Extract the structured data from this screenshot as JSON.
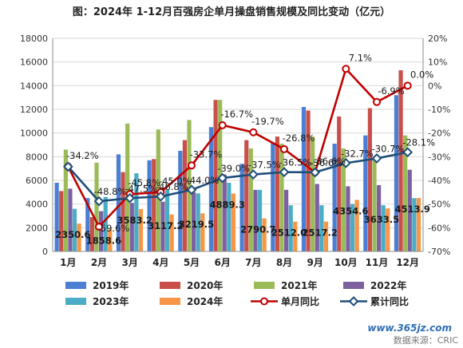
{
  "chart_data": {
    "type": "bar",
    "title": "图：2024年 1-12月百强房企单月操盘销售规模及同比变动（亿元）",
    "categories": [
      "1月",
      "2月",
      "3月",
      "4月",
      "5月",
      "6月",
      "7月",
      "8月",
      "9月",
      "10月",
      "11月",
      "12月"
    ],
    "y_left": {
      "min": 0,
      "max": 18000,
      "step": 2000,
      "ticks": [
        "0",
        "2000",
        "4000",
        "6000",
        "8000",
        "10000",
        "12000",
        "14000",
        "16000",
        "18000"
      ]
    },
    "y_right": {
      "min": -70,
      "max": 20,
      "step": 10,
      "ticks": [
        "-70%",
        "-60%",
        "-50%",
        "-40%",
        "-30%",
        "-20%",
        "-10%",
        "0%",
        "10%",
        "20%"
      ]
    },
    "series": [
      {
        "name": "2019年",
        "type": "bar",
        "color": "#4a7fd4",
        "values": [
          5800,
          4500,
          8200,
          7700,
          8500,
          10500,
          7400,
          9200,
          12200,
          9100,
          9800,
          13200
        ]
      },
      {
        "name": "2020年",
        "type": "bar",
        "color": "#c9504a",
        "values": [
          5100,
          2900,
          6700,
          7800,
          9400,
          12800,
          9400,
          9700,
          11900,
          11400,
          12100,
          15300
        ]
      },
      {
        "name": "2021年",
        "type": "bar",
        "color": "#9bbb59",
        "values": [
          8600,
          7500,
          10800,
          10300,
          11100,
          12800,
          8700,
          9100,
          9700,
          8700,
          7800,
          9800
        ]
      },
      {
        "name": "2022年",
        "type": "bar",
        "color": "#7d60a0",
        "values": [
          5300,
          3400,
          4100,
          4200,
          5000,
          6500,
          5200,
          5200,
          5700,
          5500,
          5600,
          6900
        ]
      },
      {
        "name": "2023年",
        "type": "bar",
        "color": "#4bacc6",
        "values": [
          3600,
          4600,
          6600,
          5200,
          4900,
          5800,
          5200,
          3900,
          3900,
          4000,
          3900,
          4500
        ]
      },
      {
        "name": "2024年",
        "type": "bar",
        "color": "#f79646",
        "values": [
          2350.6,
          1858.6,
          3583.2,
          3117.2,
          3219.5,
          4889.3,
          2790.7,
          2512.0,
          2517.2,
          4354.6,
          3633.5,
          4513.9
        ]
      },
      {
        "name": "单月同比",
        "type": "line",
        "axis": "right",
        "color": "#c00000",
        "marker": "circle",
        "values": [
          -34.2,
          -59.6,
          -45.8,
          -45.0,
          -33.7,
          -16.7,
          -19.7,
          -26.8,
          -36.6,
          7.1,
          -6.9,
          0.0
        ]
      },
      {
        "name": "累计同比",
        "type": "line",
        "axis": "right",
        "color": "#1f4e79",
        "marker": "diamond",
        "values": [
          -34.2,
          -48.8,
          -47.5,
          -46.8,
          -44.0,
          -39.0,
          -37.5,
          -36.5,
          -36.6,
          -32.7,
          -30.7,
          -28.1
        ]
      }
    ],
    "bar_labels": [
      "2350.6",
      "1858.6",
      "3583.2",
      "3117.2",
      "3219.5",
      "4889.3",
      "2790.7",
      "2512.0",
      "2517.2",
      "4354.6",
      "3633.5",
      "4513.9"
    ],
    "single_labels": [
      "-34.2%",
      "-59.6%",
      "-45.8%",
      "-45.0%",
      "-33.7%",
      "-16.7%",
      "-19.7%",
      "-26.8%",
      "-36.6%",
      "7.1%",
      "-6.9%",
      "0.0%"
    ],
    "cum_labels": [
      "-34.2%",
      "-48.8%",
      "-47.5%",
      "-46.8%",
      "-44.0%",
      "-39.0%",
      "-37.5%",
      "-36.5%",
      "-36.6%",
      "-32.7%",
      "-30.7%",
      "-28.1%"
    ],
    "legend_position": "bottom",
    "grid": true
  },
  "watermark": "www.365jz.com",
  "source_note": "数据来源：CRIC"
}
